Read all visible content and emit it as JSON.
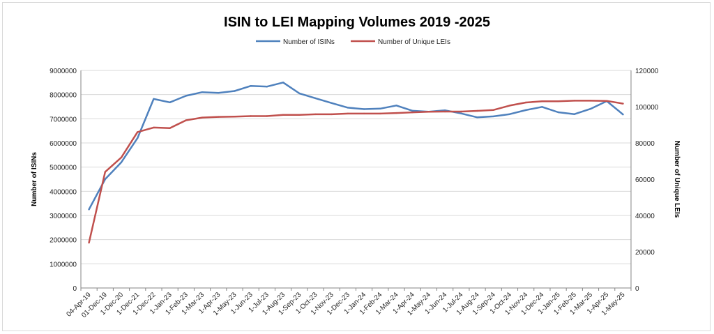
{
  "chart_data": {
    "type": "line",
    "title": "ISIN to LEI Mapping Volumes 2019 -2025",
    "categories": [
      "04-Apr-19",
      "01-Dec-19",
      "1-Dec-20",
      "1-Dec-21",
      "1-Dec-22",
      "1-Jan-23",
      "1-Feb-23",
      "1-Mar-23",
      "1-Apr-23",
      "1-May-23",
      "1-Jun-23",
      "1-Jul-23",
      "1-Aug-23",
      "1-Sep-23",
      "1-Oct-23",
      "1-Nov-23",
      "1-Dec-23",
      "1-Jan-24",
      "1-Feb-24",
      "1-Mar-24",
      "1-Apr-24",
      "1-May-24",
      "1-Jun-24",
      "1-Jul-24",
      "1-Aug-24",
      "1-Sep-24",
      "1-Oct-24",
      "1-Nov-24",
      "1-Dec-24",
      "1-Jan-25",
      "1-Feb-25",
      "1-Mar-25",
      "1-Apr-25",
      "1-May-25"
    ],
    "series": [
      {
        "name": "Number of ISINs",
        "axis": "left",
        "color": "#4f81bd",
        "values": [
          3250000,
          4500000,
          5200000,
          6200000,
          7820000,
          7680000,
          7950000,
          8100000,
          8070000,
          8150000,
          8360000,
          8330000,
          8500000,
          8050000,
          7850000,
          7650000,
          7460000,
          7400000,
          7420000,
          7550000,
          7330000,
          7290000,
          7350000,
          7220000,
          7060000,
          7100000,
          7190000,
          7360000,
          7490000,
          7270000,
          7190000,
          7410000,
          7730000,
          7180000
        ]
      },
      {
        "name": "Number of Unique LEIs",
        "axis": "right",
        "color": "#c0504d",
        "values": [
          25000,
          64000,
          72000,
          86000,
          88500,
          88200,
          92500,
          94000,
          94400,
          94500,
          94800,
          94800,
          95500,
          95500,
          95800,
          95800,
          96200,
          96200,
          96200,
          96500,
          96900,
          97200,
          97300,
          97300,
          97700,
          98200,
          100600,
          102300,
          103000,
          103000,
          103300,
          103300,
          103200,
          101700
        ]
      }
    ],
    "ylabel": "Number of ISINs",
    "y2label": "Number of Unique LEIs",
    "ylim": [
      0,
      9000000
    ],
    "y2lim": [
      0,
      120000
    ],
    "yticks": [
      "0",
      "1000000",
      "2000000",
      "3000000",
      "4000000",
      "5000000",
      "6000000",
      "7000000",
      "8000000",
      "9000000"
    ],
    "y2ticks": [
      "0",
      "20000",
      "40000",
      "60000",
      "80000",
      "100000",
      "120000"
    ],
    "grid": true,
    "legend_position": "top"
  }
}
